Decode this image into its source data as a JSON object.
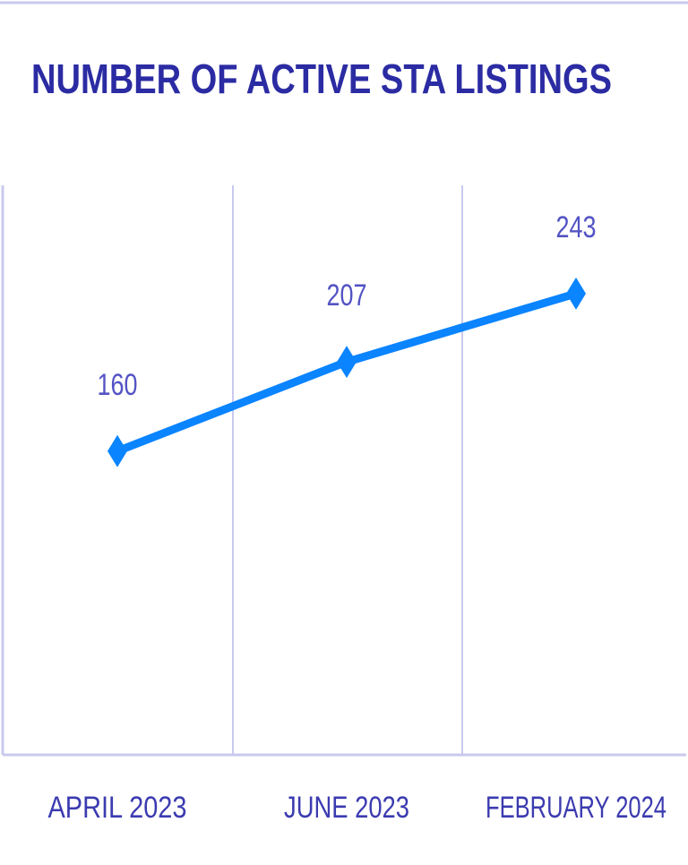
{
  "chart_data": {
    "type": "line",
    "title": "NUMBER OF ACTIVE STA LISTINGS",
    "categories": [
      "APRIL 2023",
      "JUNE 2023",
      "FEBRUARY 2024"
    ],
    "series": [
      {
        "name": "Active STA listings",
        "color": "#0a84ff",
        "values": [
          160,
          207,
          243
        ]
      }
    ],
    "ylim": [
      0,
      300
    ]
  }
}
